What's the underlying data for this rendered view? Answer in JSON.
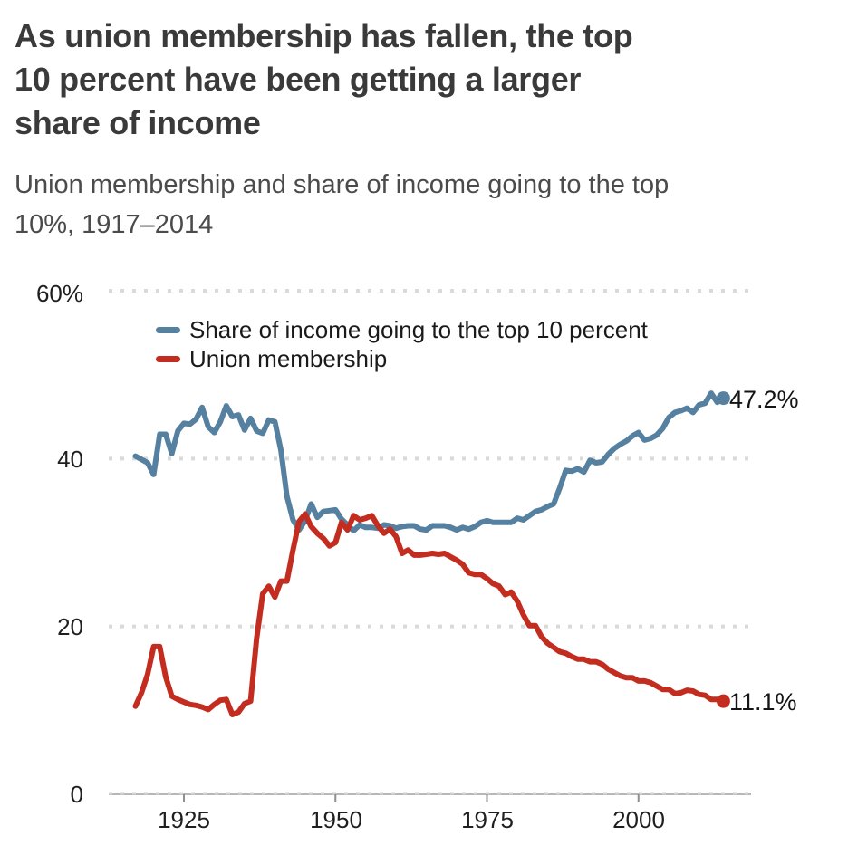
{
  "header": {
    "title_lines": [
      "As union membership has fallen, the top",
      "10 percent have been getting a larger",
      "share of income"
    ],
    "subtitle_lines": [
      "Union membership and share of income going to the top",
      "10%, 1917–2014"
    ]
  },
  "colors": {
    "income_line": "#56809f",
    "union_line": "#c32d20",
    "gridline": "#dadada",
    "axis_line": "#b8b8b8",
    "tick": "#8f8f8f",
    "title_text": "#3a3a3a",
    "subtitle_text": "#4b4b4b",
    "label_text": "#1f1f1f"
  },
  "chart_data": {
    "type": "line",
    "title": "Union membership and share of income going to the top 10%, 1917–2014",
    "x_range": [
      1917,
      2014
    ],
    "x_step": 1,
    "ylim": [
      0,
      60
    ],
    "grid": "dotted horizontal gridlines at 20, 40, 60; solid baseline at 0",
    "legend_position": "top-left inside plot",
    "y_ticks": [
      {
        "label": "60%",
        "value": 60
      },
      {
        "label": "40",
        "value": 40
      },
      {
        "label": "20",
        "value": 20
      },
      {
        "label": "0",
        "value": 0
      }
    ],
    "x_ticks": [
      {
        "label": "1925",
        "value": 1925
      },
      {
        "label": "1950",
        "value": 1950
      },
      {
        "label": "1975",
        "value": 1975
      },
      {
        "label": "2000",
        "value": 2000
      }
    ],
    "series": [
      {
        "id": "income",
        "name": "Share of income going to the top 10 percent",
        "color": "#56809f",
        "end_label": "47.2%",
        "values": [
          40.3,
          39.9,
          39.5,
          38.1,
          42.9,
          42.9,
          40.6,
          43.3,
          44.2,
          44.1,
          44.7,
          46.1,
          43.8,
          43.1,
          44.4,
          46.3,
          45.0,
          45.2,
          43.4,
          44.8,
          43.3,
          43.0,
          44.6,
          44.4,
          41.0,
          35.5,
          32.7,
          31.5,
          32.6,
          34.6,
          33.0,
          33.7,
          33.8,
          33.9,
          32.8,
          32.1,
          31.4,
          32.1,
          31.8,
          31.8,
          31.7,
          32.1,
          32.0,
          31.7,
          31.9,
          32.0,
          32.0,
          31.6,
          31.5,
          32.0,
          32.0,
          32.0,
          31.8,
          31.5,
          31.8,
          31.6,
          31.9,
          32.4,
          32.6,
          32.4,
          32.4,
          32.4,
          32.4,
          32.9,
          32.7,
          33.2,
          33.7,
          33.9,
          34.3,
          34.6,
          36.5,
          38.6,
          38.5,
          38.8,
          38.4,
          39.8,
          39.5,
          39.6,
          40.5,
          41.2,
          41.7,
          42.1,
          42.7,
          43.1,
          42.2,
          42.4,
          42.8,
          43.6,
          44.9,
          45.5,
          45.7,
          46.0,
          45.5,
          46.4,
          46.6,
          47.8,
          46.7,
          47.2
        ]
      },
      {
        "id": "union",
        "name": "Union membership",
        "color": "#c32d20",
        "end_label": "11.1%",
        "values": [
          10.5,
          12.1,
          14.3,
          17.6,
          17.6,
          14.0,
          11.7,
          11.3,
          11.0,
          10.7,
          10.6,
          10.4,
          10.1,
          10.7,
          11.2,
          11.3,
          9.5,
          9.8,
          10.8,
          11.1,
          18.6,
          23.9,
          24.8,
          23.5,
          25.4,
          25.4,
          29.1,
          32.5,
          33.4,
          31.9,
          31.1,
          30.5,
          29.6,
          30.0,
          32.4,
          31.5,
          33.2,
          32.7,
          32.9,
          33.2,
          32.0,
          31.1,
          31.6,
          30.7,
          28.7,
          29.1,
          28.5,
          28.5,
          28.6,
          28.7,
          28.6,
          28.7,
          28.3,
          27.9,
          27.4,
          26.4,
          26.2,
          26.2,
          25.7,
          25.1,
          24.8,
          23.8,
          24.1,
          23.0,
          21.4,
          20.1,
          20.1,
          18.8,
          18.0,
          17.5,
          17.0,
          16.8,
          16.4,
          16.1,
          16.1,
          15.8,
          15.8,
          15.5,
          14.9,
          14.5,
          14.1,
          13.9,
          13.9,
          13.5,
          13.5,
          13.3,
          12.9,
          12.5,
          12.5,
          12.0,
          12.1,
          12.4,
          12.3,
          11.9,
          11.8,
          11.3,
          11.3,
          11.1
        ]
      }
    ]
  }
}
